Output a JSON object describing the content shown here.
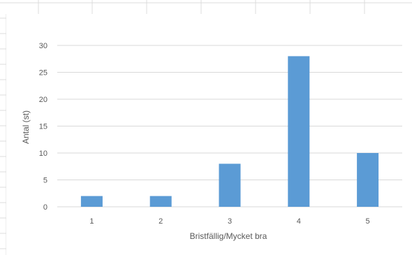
{
  "colors": {
    "bar": "#5b9bd5",
    "gridline": "#d9d9d9",
    "axis_text": "#595959",
    "spreadsheet_grid": "#dcdcdc"
  },
  "chart_data": {
    "type": "bar",
    "categories": [
      "1",
      "2",
      "3",
      "4",
      "5"
    ],
    "values": [
      2,
      2,
      8,
      28,
      10
    ],
    "xlabel": "Bristfällig/Mycket bra",
    "ylabel": "Antal (st)",
    "ylim": [
      0,
      30
    ],
    "yticks": [
      "0",
      "5",
      "10",
      "15",
      "20",
      "25",
      "30"
    ],
    "grid": true,
    "legend": "none"
  }
}
